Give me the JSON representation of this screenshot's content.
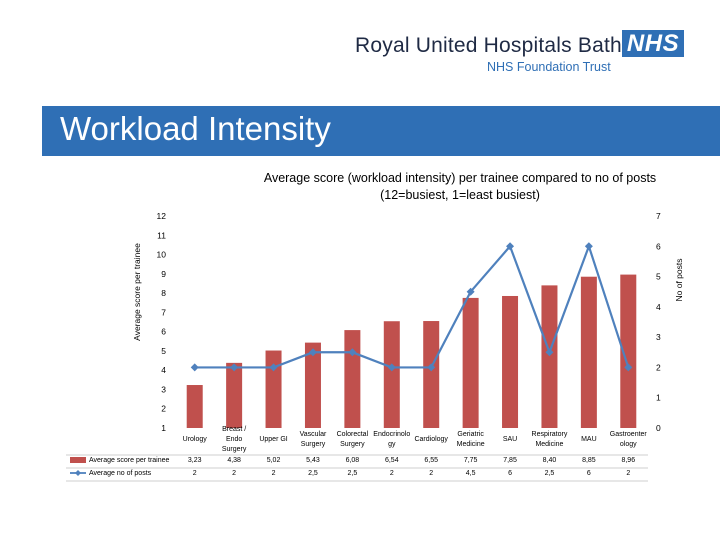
{
  "header": {
    "organization": "Royal United Hospitals Bath",
    "subtitle": "NHS Foundation Trust",
    "logo": "NHS",
    "brand_color": "#2f6fb5"
  },
  "slide": {
    "title": "Workload Intensity"
  },
  "chart_data": {
    "type": "bar",
    "title_line1": "Average score (workload intensity) per trainee compared to no of posts",
    "title_line2": "(12=busiest, 1=least busiest)",
    "ylabel": "Average score per trainee",
    "y2label": "No of posts",
    "ylim": [
      1,
      12
    ],
    "y2lim": [
      0,
      7
    ],
    "yticks": [
      "1",
      "2",
      "3",
      "4",
      "5",
      "6",
      "7",
      "8",
      "9",
      "10",
      "11",
      "12"
    ],
    "y2ticks": [
      "0",
      "1",
      "2",
      "3",
      "4",
      "5",
      "6",
      "7"
    ],
    "categories": [
      "Urology",
      "Breast / Endo Surgery",
      "Upper GI",
      "Vascular Surgery",
      "Colorectal Surgery",
      "Endocrinology",
      "Cardiology",
      "Geriatric Medicine",
      "SAU",
      "Respiratory Medicine",
      "MAU",
      "Gastroenterology"
    ],
    "category_lines": [
      [
        "Urology"
      ],
      [
        "Breast /",
        "Endo",
        "Surgery"
      ],
      [
        "Upper GI"
      ],
      [
        "Vascular",
        "Surgery"
      ],
      [
        "Colorectal",
        "Surgery"
      ],
      [
        "Endocrinolo",
        "gy"
      ],
      [
        "Cardiology"
      ],
      [
        "Geriatric",
        "Medicine"
      ],
      [
        "SAU"
      ],
      [
        "Respiratory",
        "Medicine"
      ],
      [
        "MAU"
      ],
      [
        "Gastroenter",
        "ology"
      ]
    ],
    "series": [
      {
        "name": "Average score per trainee",
        "kind": "bar",
        "axis": "left",
        "color": "#c0504d",
        "values": [
          3.23,
          4.38,
          5.02,
          5.43,
          6.08,
          6.54,
          6.55,
          7.75,
          7.85,
          8.4,
          8.85,
          8.96
        ],
        "labels": [
          "3,23",
          "4,38",
          "5,02",
          "5,43",
          "6,08",
          "6,54",
          "6,55",
          "7,75",
          "7,85",
          "8,40",
          "8,85",
          "8,96"
        ]
      },
      {
        "name": "Average no of posts",
        "kind": "line",
        "axis": "right",
        "color": "#4f81bd",
        "values": [
          2,
          2,
          2,
          2.5,
          2.5,
          2,
          2,
          4.5,
          6,
          2.5,
          6,
          2
        ],
        "labels": [
          "2",
          "2",
          "2",
          "2,5",
          "2,5",
          "2",
          "2",
          "4,5",
          "6",
          "2,5",
          "6",
          "2"
        ]
      }
    ],
    "grid": false,
    "legend": "data-table"
  }
}
